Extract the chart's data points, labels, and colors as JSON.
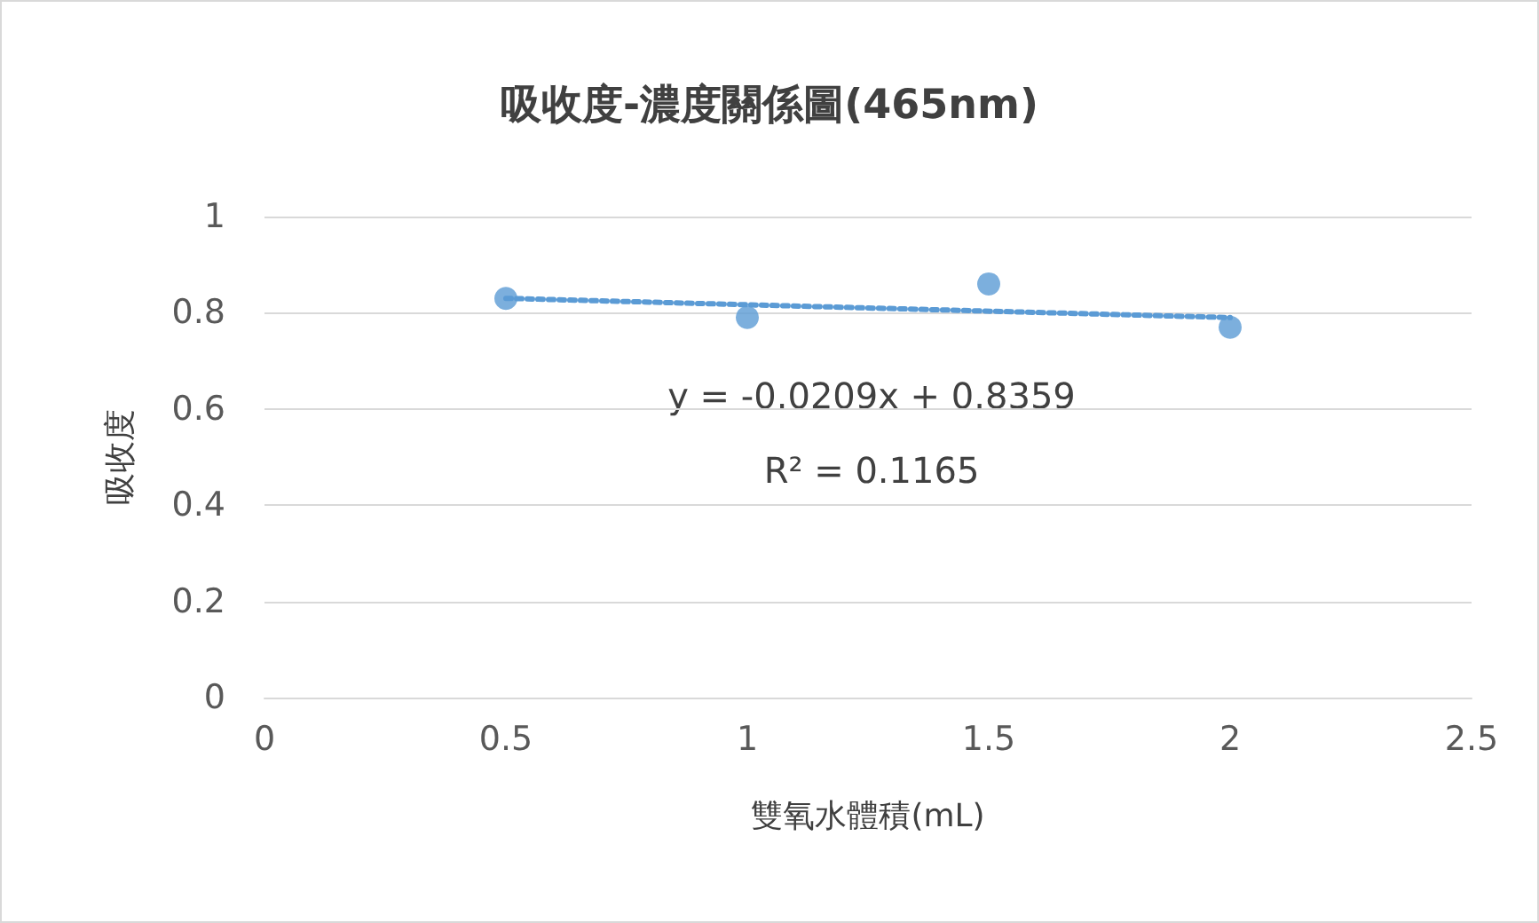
{
  "chart_data": {
    "type": "scatter",
    "title": "吸收度-濃度關係圖(465nm)",
    "xlabel": "雙氧水體積(mL)",
    "ylabel": "吸收度",
    "x": [
      0.5,
      1,
      1.5,
      2
    ],
    "series": [
      {
        "color": "#5b9bd5",
        "values": [
          0.83,
          0.79,
          0.86,
          0.77
        ],
        "marker": "circle"
      },
      {
        "type": "line",
        "color": "#5b9bd5",
        "x": [
          0.5,
          2
        ],
        "values": [
          0.83,
          0.79
        ],
        "line_style": "dotted",
        "marker": "none"
      }
    ],
    "annotations": [
      "y = -0.0209x + 0.8359",
      "R² = 0.1165"
    ],
    "xlim": [
      0,
      2.5
    ],
    "xticks": [
      0,
      0.5,
      1,
      1.5,
      2,
      2.5
    ],
    "ylim": [
      0,
      1
    ],
    "yticks": [
      0,
      0.2,
      0.4,
      0.6,
      0.8,
      1
    ],
    "grid": "y"
  }
}
